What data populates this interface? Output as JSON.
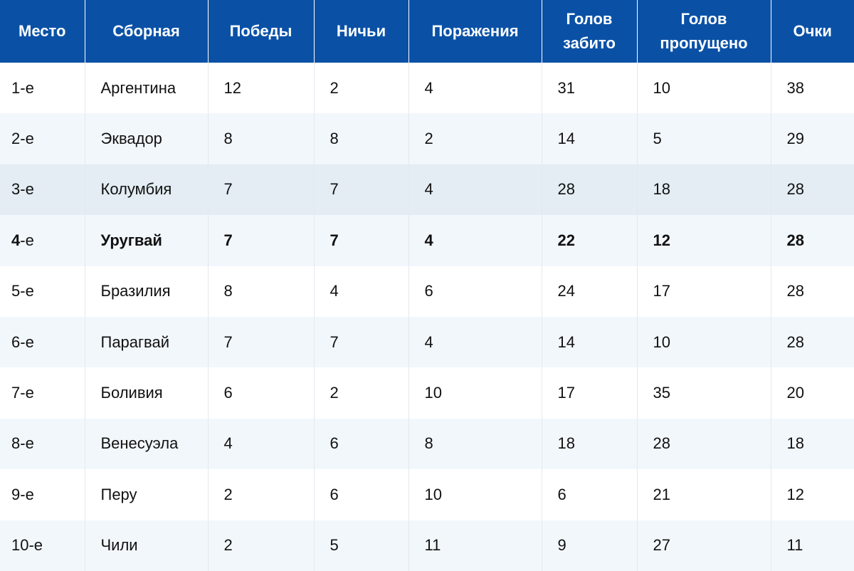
{
  "table": {
    "headers": [
      "Место",
      "Сборная",
      "Победы",
      "Ничьи",
      "Поражения",
      "Голов забито",
      "Голов пропущено",
      "Очки"
    ],
    "rows": [
      {
        "place_num": "1",
        "place_suffix": "-е",
        "team": "Аргентина",
        "wins": "12",
        "draws": "2",
        "losses": "4",
        "scored": "31",
        "conceded": "10",
        "points": "38"
      },
      {
        "place_num": "2",
        "place_suffix": "-е",
        "team": "Эквадор",
        "wins": "8",
        "draws": "8",
        "losses": "2",
        "scored": "14",
        "conceded": "5",
        "points": "29"
      },
      {
        "place_num": "3",
        "place_suffix": "-е",
        "team": "Колумбия",
        "wins": "7",
        "draws": "7",
        "losses": "4",
        "scored": "28",
        "conceded": "18",
        "points": "28"
      },
      {
        "place_num": "4",
        "place_suffix": "-е",
        "team": "Уругвай",
        "wins": "7",
        "draws": "7",
        "losses": "4",
        "scored": "22",
        "conceded": "12",
        "points": "28"
      },
      {
        "place_num": "5",
        "place_suffix": "-е",
        "team": "Бразилия",
        "wins": "8",
        "draws": "4",
        "losses": "6",
        "scored": "24",
        "conceded": "17",
        "points": "28"
      },
      {
        "place_num": "6",
        "place_suffix": "-е",
        "team": "Парагвай",
        "wins": "7",
        "draws": "7",
        "losses": "4",
        "scored": "14",
        "conceded": "10",
        "points": "28"
      },
      {
        "place_num": "7",
        "place_suffix": "-е",
        "team": "Боливия",
        "wins": "6",
        "draws": "2",
        "losses": "10",
        "scored": "17",
        "conceded": "35",
        "points": "20"
      },
      {
        "place_num": "8",
        "place_suffix": "-е",
        "team": "Венесуэла",
        "wins": "4",
        "draws": "6",
        "losses": "8",
        "scored": "18",
        "conceded": "28",
        "points": "18"
      },
      {
        "place_num": "9",
        "place_suffix": "-е",
        "team": "Перу",
        "wins": "2",
        "draws": "6",
        "losses": "10",
        "scored": "6",
        "conceded": "21",
        "points": "12"
      },
      {
        "place_num": "10",
        "place_suffix": "-е",
        "team": "Чили",
        "wins": "2",
        "draws": "5",
        "losses": "11",
        "scored": "9",
        "conceded": "27",
        "points": "11"
      }
    ],
    "highlighted_team": "Уругвай",
    "hovered_team": "Колумбия"
  },
  "colors": {
    "header_bg": "#0a51a6",
    "header_text": "#ffffff",
    "row_alt_bg": "#f2f7fc",
    "row_hover_bg": "#e3edf3"
  }
}
